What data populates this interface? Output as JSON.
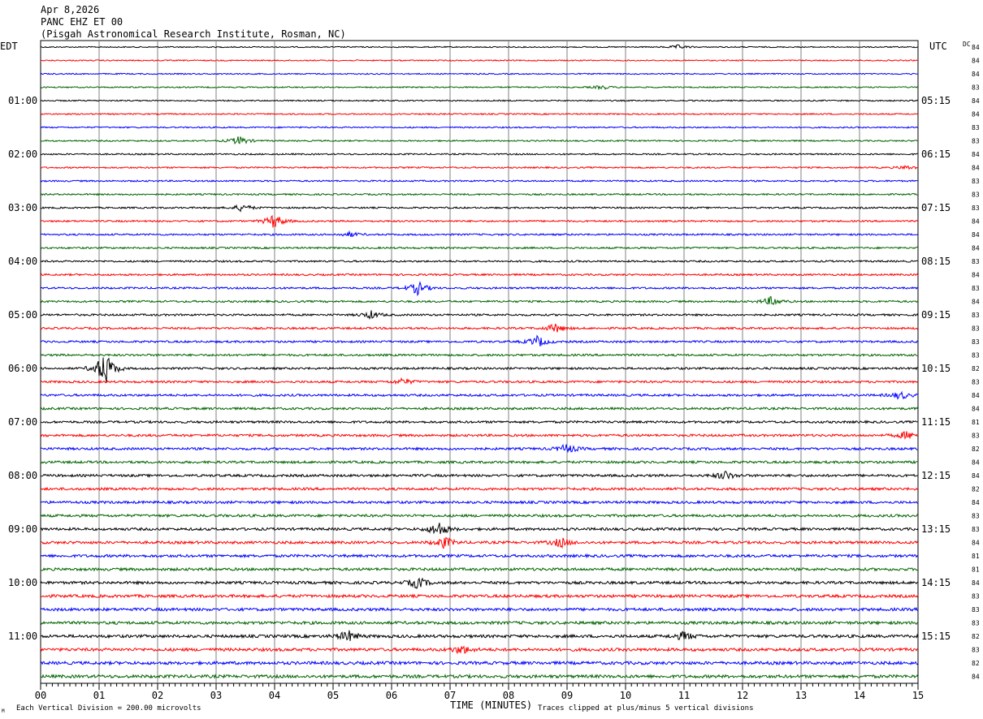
{
  "header": {
    "date": "Apr 8,2026",
    "station": "PANC EHZ ET 00",
    "location": "(Pisgah Astronomical Research Institute, Rosman, NC)"
  },
  "labels": {
    "left_tz": "EDT",
    "right_tz": "UTC",
    "dc_header": "DC",
    "xlabel": "TIME (MINUTES)",
    "scale_note": "Each Vertical Division =  200.00 microvolts",
    "clip_note": "Traces clipped at plus/minus 5 vertical divisions",
    "corner_mark": "M"
  },
  "colors": {
    "trace_cycle": [
      "#000000",
      "#ff0000",
      "#0000ff",
      "#006400"
    ],
    "grid": "#808080"
  },
  "chart_data": {
    "type": "line",
    "traces_per_hour": 4,
    "minutes_per_trace": 15,
    "x_ticks": [
      "00",
      "01",
      "02",
      "03",
      "04",
      "05",
      "06",
      "07",
      "08",
      "09",
      "10",
      "11",
      "12",
      "13",
      "14",
      "15"
    ],
    "xlim": [
      0,
      15
    ],
    "left_hour_labels": [
      "01:00",
      "02:00",
      "03:00",
      "04:00",
      "05:00",
      "06:00",
      "07:00",
      "08:00",
      "09:00",
      "10:00",
      "11:00"
    ],
    "right_hour_labels": [
      "05:15",
      "06:15",
      "07:15",
      "08:15",
      "09:15",
      "10:15",
      "11:15",
      "12:15",
      "13:15",
      "14:15",
      "15:15"
    ],
    "dc_offsets": [
      "84",
      "84",
      "84",
      "83",
      "84",
      "84",
      "83",
      "83",
      "84",
      "84",
      "83",
      "83",
      "83",
      "84",
      "84",
      "84",
      "83",
      "84",
      "83",
      "84",
      "83",
      "83",
      "83",
      "83",
      "82",
      "83",
      "84",
      "84",
      "81",
      "83",
      "82",
      "84",
      "84",
      "82",
      "84",
      "83",
      "83",
      "84",
      "81",
      "81",
      "84",
      "83",
      "83",
      "83",
      "82",
      "83",
      "82",
      "84"
    ],
    "events": [
      {
        "trace": 0,
        "minute": 10.9,
        "amp": 0.4
      },
      {
        "trace": 3,
        "minute": 9.6,
        "amp": 0.4
      },
      {
        "trace": 7,
        "minute": 3.4,
        "amp": 1.0
      },
      {
        "trace": 9,
        "minute": 14.8,
        "amp": 0.4
      },
      {
        "trace": 12,
        "minute": 3.45,
        "amp": 0.8
      },
      {
        "trace": 13,
        "minute": 4.0,
        "amp": 1.6
      },
      {
        "trace": 14,
        "minute": 5.3,
        "amp": 0.5
      },
      {
        "trace": 18,
        "minute": 6.45,
        "amp": 1.4
      },
      {
        "trace": 19,
        "minute": 12.5,
        "amp": 1.0
      },
      {
        "trace": 20,
        "minute": 5.65,
        "amp": 0.8
      },
      {
        "trace": 21,
        "minute": 8.8,
        "amp": 1.0
      },
      {
        "trace": 22,
        "minute": 8.5,
        "amp": 1.2
      },
      {
        "trace": 24,
        "minute": 1.1,
        "amp": 3.8
      },
      {
        "trace": 25,
        "minute": 6.2,
        "amp": 0.7
      },
      {
        "trace": 26,
        "minute": 14.7,
        "amp": 0.8
      },
      {
        "trace": 29,
        "minute": 14.8,
        "amp": 0.8
      },
      {
        "trace": 30,
        "minute": 9.0,
        "amp": 1.0
      },
      {
        "trace": 32,
        "minute": 11.7,
        "amp": 0.9
      },
      {
        "trace": 36,
        "minute": 6.8,
        "amp": 1.6
      },
      {
        "trace": 37,
        "minute": 8.9,
        "amp": 1.0
      },
      {
        "trace": 37,
        "minute": 6.9,
        "amp": 1.2
      },
      {
        "trace": 40,
        "minute": 6.45,
        "amp": 1.2
      },
      {
        "trace": 44,
        "minute": 5.25,
        "amp": 1.2
      },
      {
        "trace": 44,
        "minute": 11.0,
        "amp": 0.9
      },
      {
        "trace": 45,
        "minute": 7.2,
        "amp": 0.9
      }
    ]
  }
}
